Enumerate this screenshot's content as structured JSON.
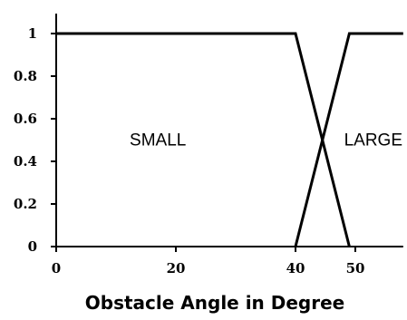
{
  "chart_data": {
    "type": "line",
    "title": "",
    "xlabel": "Obstacle Angle in Degree",
    "ylabel": "",
    "xlim": [
      0,
      58
    ],
    "ylim": [
      0,
      1.05
    ],
    "x_ticks": [
      0,
      20,
      40,
      50
    ],
    "x_tick_labels": [
      "0",
      "20",
      "40",
      "50"
    ],
    "y_ticks": [
      0,
      0.2,
      0.4,
      0.6,
      0.8,
      1
    ],
    "y_tick_labels": [
      "0",
      "0.2",
      "0.4",
      "0.6",
      "0.8",
      "1"
    ],
    "grid": false,
    "series": [
      {
        "x": [
          0,
          40,
          49
        ],
        "y": [
          1,
          1,
          0
        ]
      },
      {
        "x": [
          40,
          49,
          58
        ],
        "y": [
          0,
          1,
          1
        ]
      }
    ],
    "annotations": [
      {
        "text": "SMALL",
        "x": 17,
        "y": 0.5
      },
      {
        "text": "LARGE",
        "x": 53,
        "y": 0.5
      }
    ],
    "line_color": "#000000"
  }
}
